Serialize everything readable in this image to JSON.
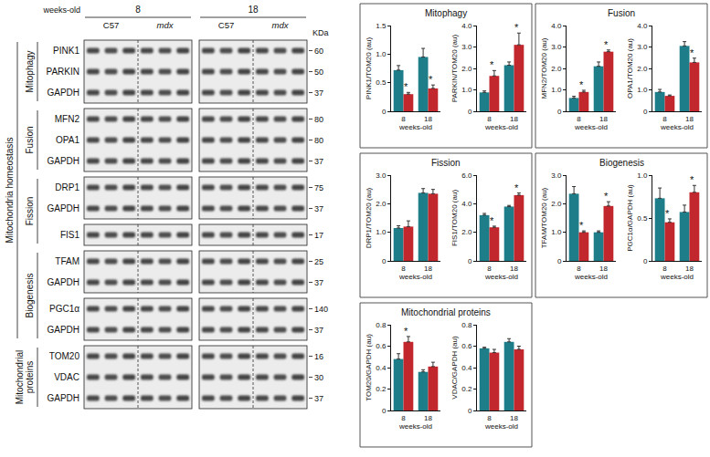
{
  "blot": {
    "header": {
      "label": "weeks-old",
      "ages": [
        "8",
        "18"
      ],
      "strains": [
        "C57",
        "mdx"
      ],
      "unit": "KDa"
    },
    "groups": [
      {
        "label": "Mitochondria homeostasis",
        "sections": [
          {
            "label": "Mitophagy",
            "blocks": [
              [
                {
                  "protein": "PINK1",
                  "kda": 60
                },
                {
                  "protein": "PARKIN",
                  "kda": 50
                },
                {
                  "protein": "GAPDH",
                  "kda": 37
                }
              ]
            ]
          },
          {
            "label": "Fusion",
            "blocks": [
              [
                {
                  "protein": "MFN2",
                  "kda": 80
                },
                {
                  "protein": "OPA1",
                  "kda": 80
                },
                {
                  "protein": "GAPDH",
                  "kda": 37
                }
              ]
            ]
          },
          {
            "label": "Fission",
            "blocks": [
              [
                {
                  "protein": "DRP1",
                  "kda": 75
                },
                {
                  "protein": "GAPDH",
                  "kda": 37
                }
              ],
              [
                {
                  "protein": "FIS1",
                  "kda": 17
                }
              ]
            ]
          },
          {
            "label": "Biogenesis",
            "blocks": [
              [
                {
                  "protein": "TFAM",
                  "kda": 25
                },
                {
                  "protein": "GAPDH",
                  "kda": 37
                }
              ],
              [
                {
                  "protein": "PGC1α",
                  "kda": 140
                },
                {
                  "protein": "GAPDH",
                  "kda": 37
                }
              ]
            ]
          }
        ]
      },
      {
        "sections": [
          {
            "label": "Mitochondrial proteins",
            "blocks": [
              [
                {
                  "protein": "TOM20",
                  "kda": 16
                },
                {
                  "protein": "VDAC",
                  "kda": 30
                },
                {
                  "protein": "GAPDH",
                  "kda": 37
                }
              ]
            ]
          }
        ]
      }
    ]
  },
  "chart_data": [
    {
      "type": "bar",
      "panel": "Mitophagy",
      "ylabel": "PINK1/TOM20 (au)",
      "xlabel": "weeks-old",
      "categories": [
        "8",
        "18"
      ],
      "ylim": [
        0,
        1.5
      ],
      "yticks": [
        0,
        0.5,
        {
          "value": 1,
          "label": "1.0"
        },
        1.5
      ],
      "grid": false,
      "series": [
        {
          "color": "#1d7d89",
          "values": [
            0.72,
            0.95
          ],
          "errors": [
            0.08,
            0.15
          ]
        },
        {
          "color": "#c1272d",
          "values": [
            0.3,
            0.4
          ],
          "errors": [
            0.03,
            0.06
          ],
          "annotations": [
            "*",
            "*"
          ]
        }
      ]
    },
    {
      "type": "bar",
      "panel": "Mitophagy",
      "ylabel": "PARKIN/TOM20 (au)",
      "xlabel": "weeks-old",
      "categories": [
        "8",
        "18"
      ],
      "ylim": [
        0,
        4
      ],
      "yticks": [
        0,
        {
          "value": 1,
          "label": "1.0"
        },
        {
          "value": 2,
          "label": "2.0"
        },
        {
          "value": 3,
          "label": "3.0"
        },
        {
          "value": 4,
          "label": "4.0"
        }
      ],
      "grid": false,
      "series": [
        {
          "color": "#1d7d89",
          "values": [
            0.88,
            2.15
          ],
          "errors": [
            0.07,
            0.15
          ]
        },
        {
          "color": "#c1272d",
          "values": [
            1.65,
            3.1
          ],
          "errors": [
            0.25,
            0.55
          ],
          "annotations": [
            "*",
            "*"
          ]
        }
      ]
    },
    {
      "type": "bar",
      "panel": "Fusion",
      "ylabel": "MFN2/TOM20 (au)",
      "xlabel": "weeks-old",
      "categories": [
        "8",
        "18"
      ],
      "ylim": [
        0,
        4
      ],
      "yticks": [
        0,
        {
          "value": 1,
          "label": "1.0"
        },
        {
          "value": 2,
          "label": "2.0"
        },
        {
          "value": 3,
          "label": "3.0"
        },
        {
          "value": 4,
          "label": "4.0"
        }
      ],
      "grid": false,
      "series": [
        {
          "color": "#1d7d89",
          "values": [
            0.62,
            2.1
          ],
          "errors": [
            0.08,
            0.2
          ]
        },
        {
          "color": "#c1272d",
          "values": [
            0.9,
            2.78
          ],
          "errors": [
            0.08,
            0.08
          ],
          "annotations": [
            "*",
            "*"
          ]
        }
      ]
    },
    {
      "type": "bar",
      "panel": "Fusion",
      "ylabel": "OPA1/TOM20 (au)",
      "xlabel": "weeks-old",
      "categories": [
        "8",
        "18"
      ],
      "ylim": [
        0,
        4
      ],
      "yticks": [
        0,
        {
          "value": 1,
          "label": "1.0"
        },
        {
          "value": 2,
          "label": "2.0"
        },
        {
          "value": 3,
          "label": "3.0"
        },
        {
          "value": 4,
          "label": "4.0"
        }
      ],
      "grid": false,
      "series": [
        {
          "color": "#1d7d89",
          "values": [
            0.9,
            3.05
          ],
          "errors": [
            0.12,
            0.2
          ]
        },
        {
          "color": "#c1272d",
          "values": [
            0.72,
            2.28
          ],
          "errors": [
            0.04,
            0.2
          ],
          "annotations": [
            null,
            "*"
          ]
        }
      ]
    },
    {
      "type": "bar",
      "panel": "Fission",
      "ylabel": "DRP1/TOM20 (au)",
      "xlabel": "weeks-old",
      "categories": [
        "8",
        "18"
      ],
      "ylim": [
        0,
        3
      ],
      "yticks": [
        0,
        {
          "value": 1,
          "label": "1.0"
        },
        {
          "value": 2,
          "label": "2.0"
        },
        {
          "value": 3,
          "label": "3.0"
        }
      ],
      "grid": false,
      "series": [
        {
          "color": "#1d7d89",
          "values": [
            1.15,
            2.38
          ],
          "errors": [
            0.08,
            0.15
          ]
        },
        {
          "color": "#c1272d",
          "values": [
            1.2,
            2.35
          ],
          "errors": [
            0.2,
            0.15
          ]
        }
      ]
    },
    {
      "type": "bar",
      "panel": "Fission",
      "ylabel": "FIS1/TOM20 (au)",
      "xlabel": "weeks-old",
      "categories": [
        "8",
        "18"
      ],
      "ylim": [
        0,
        6
      ],
      "yticks": [
        0,
        {
          "value": 2,
          "label": "2.0"
        },
        {
          "value": 4,
          "label": "4.0"
        },
        {
          "value": 6,
          "label": "6.0"
        }
      ],
      "grid": false,
      "series": [
        {
          "color": "#1d7d89",
          "values": [
            3.2,
            3.8
          ],
          "errors": [
            0.12,
            0.08
          ]
        },
        {
          "color": "#c1272d",
          "values": [
            2.35,
            4.6
          ],
          "errors": [
            0.08,
            0.15
          ],
          "annotations": [
            "*",
            "*"
          ]
        }
      ]
    },
    {
      "type": "bar",
      "panel": "Biogenesis",
      "ylabel": "TFAM/TOM20 (au)",
      "xlabel": "weeks-old",
      "categories": [
        "8",
        "18"
      ],
      "ylim": [
        0,
        3
      ],
      "yticks": [
        0,
        {
          "value": 1,
          "label": "1.0"
        },
        {
          "value": 2,
          "label": "2.0"
        },
        {
          "value": 3,
          "label": "3.0"
        }
      ],
      "grid": false,
      "series": [
        {
          "color": "#1d7d89",
          "values": [
            2.35,
            1.0
          ],
          "errors": [
            0.25,
            0.05
          ]
        },
        {
          "color": "#c1272d",
          "values": [
            1.0,
            1.92
          ],
          "errors": [
            0.05,
            0.15
          ],
          "annotations": [
            "*",
            "*"
          ]
        }
      ]
    },
    {
      "type": "bar",
      "panel": "Biogenesis",
      "ylabel": "PGC1α/GAPDH (au)",
      "xlabel": "weeks-old",
      "categories": [
        "8",
        "18"
      ],
      "ylim": [
        0,
        1
      ],
      "yticks": [
        0,
        0.5,
        {
          "value": 1,
          "label": "1.0"
        }
      ],
      "grid": false,
      "series": [
        {
          "color": "#1d7d89",
          "values": [
            0.73,
            0.57
          ],
          "errors": [
            0.12,
            0.08
          ]
        },
        {
          "color": "#c1272d",
          "values": [
            0.45,
            0.8
          ],
          "errors": [
            0.04,
            0.08
          ],
          "annotations": [
            "*",
            "*"
          ]
        }
      ]
    },
    {
      "type": "bar",
      "panel": "Mitochondrial proteins",
      "ylabel": "TOM20/GAPDH (au)",
      "xlabel": "weeks-old",
      "categories": [
        "8",
        "18"
      ],
      "ylim": [
        0,
        0.8
      ],
      "yticks": [
        0,
        0.2,
        0.4,
        0.6,
        0.8
      ],
      "grid": false,
      "series": [
        {
          "color": "#1d7d89",
          "values": [
            0.48,
            0.36
          ],
          "errors": [
            0.05,
            0.02
          ]
        },
        {
          "color": "#c1272d",
          "values": [
            0.64,
            0.41
          ],
          "errors": [
            0.05,
            0.04
          ],
          "annotations": [
            "*",
            null
          ]
        }
      ]
    },
    {
      "type": "bar",
      "panel": "Mitochondrial proteins",
      "ylabel": "VDAC/GAPDH (au)",
      "xlabel": "weeks-old",
      "categories": [
        "8",
        "18"
      ],
      "ylim": [
        0,
        0.8
      ],
      "yticks": [
        0,
        0.2,
        0.4,
        0.6,
        0.8
      ],
      "grid": false,
      "series": [
        {
          "color": "#1d7d89",
          "values": [
            0.58,
            0.64
          ],
          "errors": [
            0.01,
            0.03
          ]
        },
        {
          "color": "#c1272d",
          "values": [
            0.54,
            0.57
          ],
          "errors": [
            0.03,
            0.03
          ]
        }
      ]
    }
  ]
}
